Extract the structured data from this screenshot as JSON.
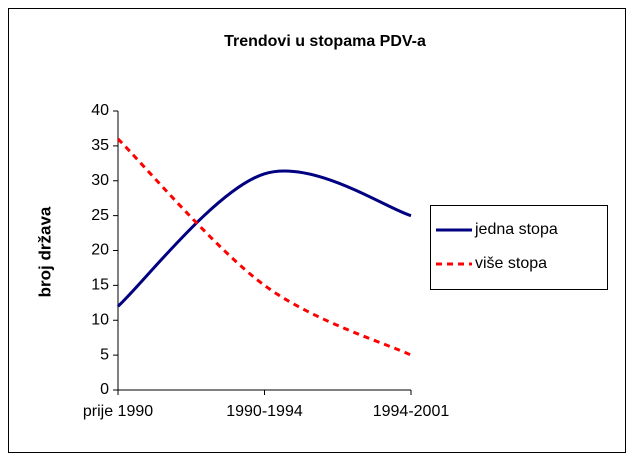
{
  "chart_data": {
    "type": "line",
    "title": "Trendovi u stopama PDV-a",
    "y_label": "broj država",
    "categories": [
      "prije 1990",
      "1990-1994",
      "1994-2001"
    ],
    "series": [
      {
        "name": "jedna stopa",
        "color": "#000080",
        "line_style": "solid",
        "values": [
          12,
          31,
          25
        ]
      },
      {
        "name": "više stopa",
        "color": "#ff0000",
        "line_style": "dashed",
        "values": [
          36,
          15,
          5
        ]
      }
    ],
    "ylim": [
      0,
      40
    ],
    "yticks": [
      0,
      5,
      10,
      15,
      20,
      25,
      30,
      35,
      40
    ],
    "smooth": true,
    "grid": false,
    "legend": "right"
  }
}
